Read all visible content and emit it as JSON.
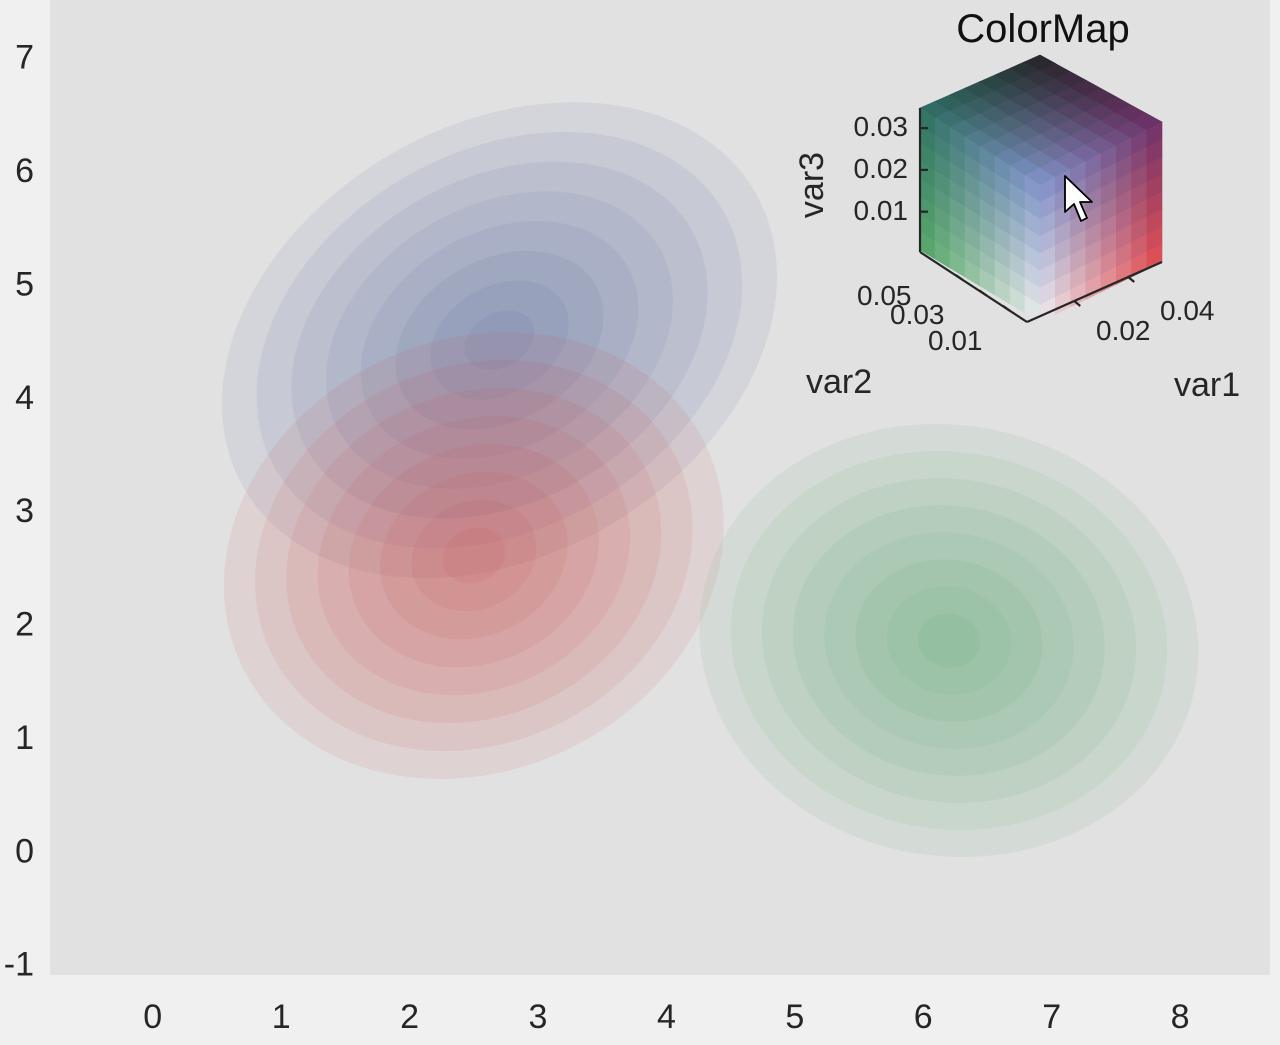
{
  "chart_data": {
    "type": "contour",
    "xlim": [
      -0.8,
      8.7
    ],
    "ylim": [
      -1.1,
      7.5
    ],
    "xticks": [
      "0",
      "1",
      "2",
      "3",
      "4",
      "5",
      "6",
      "7",
      "8"
    ],
    "yticks": [
      "-1",
      "0",
      "1",
      "2",
      "3",
      "4",
      "5",
      "6",
      "7"
    ],
    "background": "#e1e1e1",
    "series": [
      {
        "color": "#4a5fa0",
        "center": [
          2.7,
          4.5
        ],
        "rx": 2.3,
        "ry": 1.9,
        "angle": 30,
        "levels": 8
      },
      {
        "color": "#cc4448",
        "center": [
          2.5,
          2.6
        ],
        "rx": 2.0,
        "ry": 1.9,
        "angle": 25,
        "levels": 8
      },
      {
        "color": "#5aa870",
        "center": [
          6.2,
          1.85
        ],
        "rx": 1.95,
        "ry": 1.9,
        "angle": -10,
        "levels": 8
      }
    ],
    "colormap": {
      "title": "ColorMap",
      "var1_label": "var1",
      "var2_label": "var2",
      "var3_label": "var3",
      "var1_ticks": [
        "0.02",
        "0.04"
      ],
      "var2_ticks": [
        "0.01",
        "0.03",
        "0.05"
      ],
      "var3_ticks": [
        "0.01",
        "0.02",
        "0.03"
      ]
    }
  }
}
